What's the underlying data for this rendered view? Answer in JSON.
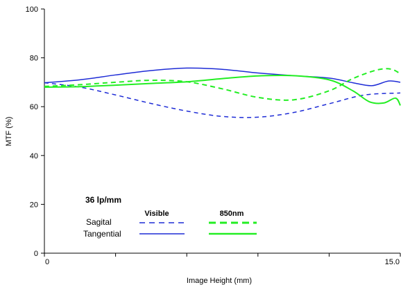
{
  "chart_data": {
    "type": "line",
    "xlabel": "Image Height (mm)",
    "ylabel": "MTF (%)",
    "xlim": [
      0,
      15.0
    ],
    "ylim": [
      0,
      100
    ],
    "x_tick_labels": [
      "0",
      "15.0"
    ],
    "y_tick_labels": [
      "0",
      "20",
      "40",
      "60",
      "80",
      "100"
    ],
    "grid": false,
    "annotation": "36 lp/mm",
    "legend": {
      "column_headers": [
        "Visible",
        "850nm"
      ],
      "rows": [
        "Sagital",
        "Tangential"
      ],
      "placement": "lower-left"
    },
    "colors": {
      "visible": "#1d2bd6",
      "nir": "#22ee22"
    },
    "series": [
      {
        "name": "Sagital",
        "group": "Visible",
        "style": "dashed",
        "color": "#1d2bd6",
        "x": [
          0,
          1.5,
          3.0,
          4.5,
          6.0,
          7.5,
          9.0,
          10.5,
          12.0,
          13.5,
          15.0
        ],
        "y": [
          69.8,
          68.0,
          64.8,
          61.3,
          58.2,
          56.0,
          55.7,
          57.6,
          61.2,
          64.8,
          65.6
        ]
      },
      {
        "name": "Tangential",
        "group": "Visible",
        "style": "solid",
        "color": "#1d2bd6",
        "x": [
          0,
          1.5,
          3.0,
          4.5,
          6.0,
          7.5,
          9.0,
          10.5,
          12.0,
          13.0,
          13.8,
          14.5,
          15.0
        ],
        "y": [
          69.8,
          71.0,
          73.0,
          74.8,
          75.8,
          75.3,
          73.8,
          72.7,
          71.7,
          69.8,
          68.6,
          70.5,
          70.0
        ]
      },
      {
        "name": "Sagital",
        "group": "850nm",
        "style": "dashed",
        "color": "#22ee22",
        "x": [
          0,
          1.5,
          3.0,
          4.5,
          6.0,
          7.5,
          9.0,
          10.5,
          12.0,
          13.0,
          14.0,
          14.6,
          15.0
        ],
        "y": [
          68.3,
          69.0,
          70.0,
          70.8,
          70.2,
          67.3,
          63.8,
          62.8,
          66.5,
          71.5,
          75.0,
          75.4,
          73.5
        ]
      },
      {
        "name": "Tangential",
        "group": "850nm",
        "style": "solid",
        "color": "#22ee22",
        "x": [
          0,
          1.5,
          3.0,
          4.5,
          6.0,
          7.5,
          9.0,
          10.5,
          12.0,
          13.0,
          13.7,
          14.3,
          14.8,
          15.0
        ],
        "y": [
          68.0,
          68.2,
          68.8,
          69.5,
          70.2,
          71.5,
          72.6,
          72.7,
          71.0,
          66.5,
          62.0,
          61.5,
          63.5,
          60.5
        ]
      }
    ]
  }
}
